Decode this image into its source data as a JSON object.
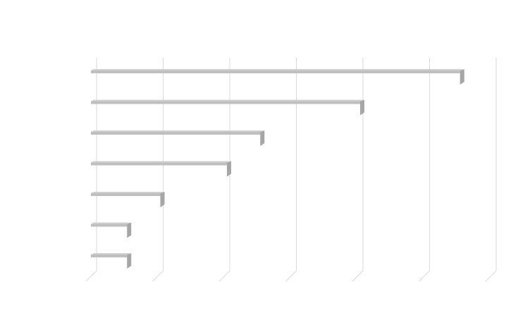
{
  "chart_data": {
    "type": "bar",
    "orientation": "horizontal",
    "style": "3d",
    "title": "",
    "xlabel": "",
    "ylabel": "",
    "categories": [
      "",
      "",
      "",
      "",
      "",
      "",
      ""
    ],
    "values": [
      5.5,
      4.0,
      2.5,
      2.0,
      1.0,
      0.5,
      0.5
    ],
    "xlim": [
      0,
      6
    ],
    "xticks": [
      0,
      1,
      2,
      3,
      4,
      5,
      6
    ],
    "tick_labels_visible": false,
    "grid": true,
    "legend": "none",
    "colors": {
      "bar_front": "#bfbfbf",
      "bar_side": "#a6a6a6",
      "bar_top": "#d0d0d0",
      "grid": "#d9d9d9",
      "background": "#ffffff"
    }
  }
}
